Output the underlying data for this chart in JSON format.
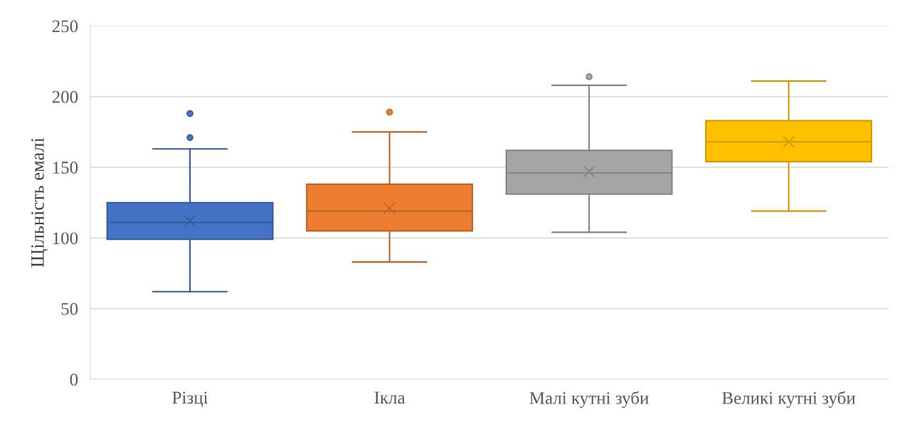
{
  "chart_data": {
    "type": "box",
    "ylabel": "Щільність емалі",
    "categories": [
      "Різці",
      "Ікла",
      "Малі кутні зуби",
      "Великі кутні зуби"
    ],
    "colors": [
      "#4472c4",
      "#ed7d31",
      "#a5a5a5",
      "#ffc000"
    ],
    "boxes": [
      {
        "low": 62,
        "q1": 99,
        "median": 111,
        "q3": 125,
        "high": 163,
        "mean": 112,
        "outliers": [
          171,
          188
        ]
      },
      {
        "low": 83,
        "q1": 105,
        "median": 119,
        "q3": 138,
        "high": 175,
        "mean": 121,
        "outliers": [
          189
        ]
      },
      {
        "low": 104,
        "q1": 131,
        "median": 146,
        "q3": 162,
        "high": 208,
        "mean": 147,
        "outliers": [
          214
        ]
      },
      {
        "low": 119,
        "q1": 154,
        "median": 168,
        "q3": 183,
        "high": 211,
        "mean": 168
      }
    ],
    "ylim": [
      0,
      250
    ],
    "yticks": [
      0,
      50,
      100,
      150,
      200,
      250
    ],
    "grid": "y",
    "legend": false
  }
}
